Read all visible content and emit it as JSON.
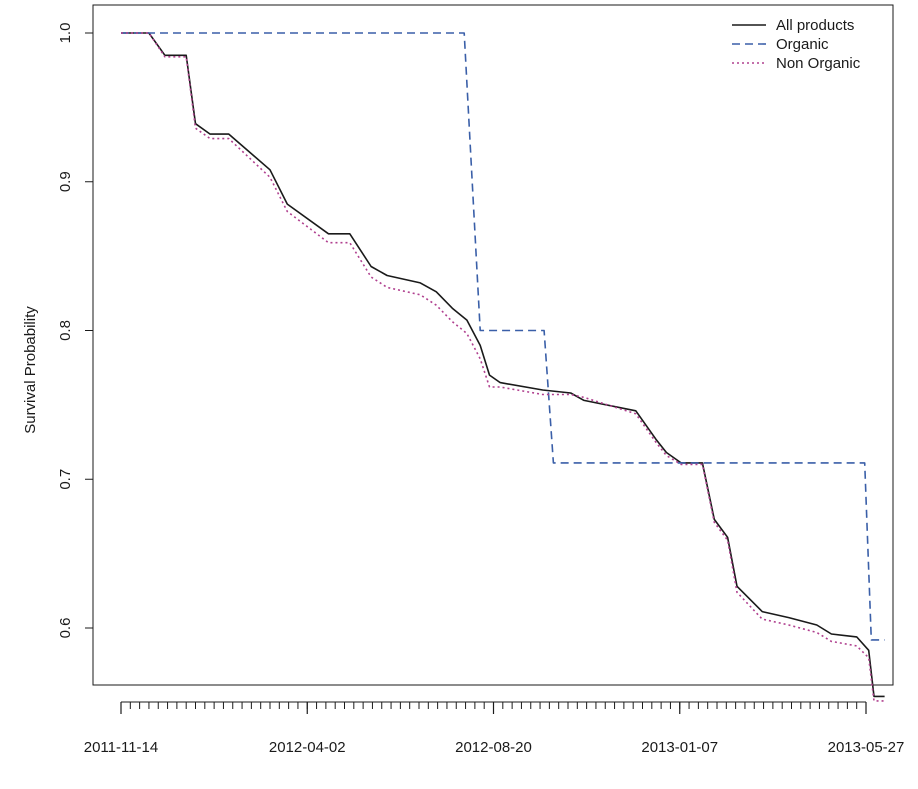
{
  "chart_data": {
    "type": "line",
    "title": "",
    "xlabel": "",
    "ylabel": "Survival Probability",
    "x_type": "date",
    "x_tick_labels": [
      "2011-11-14",
      "2012-04-02",
      "2012-08-20",
      "2013-01-07",
      "2013-05-27"
    ],
    "xlim": [
      "2011-11-14",
      "2013-05-27"
    ],
    "ylim": [
      0.55,
      1.0
    ],
    "y_ticks": [
      0.6,
      0.7,
      0.8,
      0.9,
      1.0
    ],
    "y_tick_labels": [
      "0.6",
      "0.7",
      "0.8",
      "0.9",
      "1.0"
    ],
    "grid": false,
    "legend_position": "top-right",
    "line_style": "step",
    "series": [
      {
        "name": "All products",
        "color": "#1a1a1a",
        "dash": "solid",
        "points": [
          [
            "2011-11-14",
            1.0
          ],
          [
            "2011-12-05",
            1.0
          ],
          [
            "2011-12-17",
            0.985
          ],
          [
            "2012-01-02",
            0.985
          ],
          [
            "2012-01-09",
            0.939
          ],
          [
            "2012-01-20",
            0.932
          ],
          [
            "2012-02-03",
            0.932
          ],
          [
            "2012-03-05",
            0.908
          ],
          [
            "2012-03-18",
            0.885
          ],
          [
            "2012-04-18",
            0.865
          ],
          [
            "2012-05-04",
            0.865
          ],
          [
            "2012-05-20",
            0.843
          ],
          [
            "2012-06-01",
            0.837
          ],
          [
            "2012-06-26",
            0.832
          ],
          [
            "2012-07-08",
            0.826
          ],
          [
            "2012-07-20",
            0.815
          ],
          [
            "2012-07-31",
            0.807
          ],
          [
            "2012-08-10",
            0.79
          ],
          [
            "2012-08-17",
            0.77
          ],
          [
            "2012-08-25",
            0.765
          ],
          [
            "2012-09-26",
            0.76
          ],
          [
            "2012-10-17",
            0.758
          ],
          [
            "2012-10-27",
            0.753
          ],
          [
            "2012-12-05",
            0.746
          ],
          [
            "2012-12-20",
            0.727
          ],
          [
            "2012-12-28",
            0.718
          ],
          [
            "2013-01-08",
            0.711
          ],
          [
            "2013-01-24",
            0.711
          ],
          [
            "2013-02-02",
            0.673
          ],
          [
            "2013-02-12",
            0.661
          ],
          [
            "2013-02-19",
            0.628
          ],
          [
            "2013-03-10",
            0.611
          ],
          [
            "2013-03-30",
            0.607
          ],
          [
            "2013-04-20",
            0.602
          ],
          [
            "2013-05-01",
            0.596
          ],
          [
            "2013-05-20",
            0.594
          ],
          [
            "2013-05-29",
            0.585
          ],
          [
            "2013-06-02",
            0.554
          ],
          [
            "2013-06-10",
            0.554
          ]
        ]
      },
      {
        "name": "Organic",
        "color": "#3a5fa8",
        "dash": "dashed",
        "points": [
          [
            "2011-11-14",
            1.0
          ],
          [
            "2012-07-29",
            1.0
          ],
          [
            "2012-08-10",
            0.8
          ],
          [
            "2012-09-27",
            0.8
          ],
          [
            "2012-10-04",
            0.711
          ],
          [
            "2013-05-26",
            0.711
          ],
          [
            "2013-05-31",
            0.592
          ],
          [
            "2013-06-10",
            0.592
          ]
        ]
      },
      {
        "name": "Non Organic",
        "color": "#b0408f",
        "dash": "dotted",
        "points": [
          [
            "2011-11-14",
            1.0
          ],
          [
            "2011-12-05",
            1.0
          ],
          [
            "2011-12-17",
            0.984
          ],
          [
            "2012-01-02",
            0.984
          ],
          [
            "2012-01-09",
            0.936
          ],
          [
            "2012-01-20",
            0.929
          ],
          [
            "2012-02-03",
            0.929
          ],
          [
            "2012-03-05",
            0.903
          ],
          [
            "2012-03-18",
            0.88
          ],
          [
            "2012-04-18",
            0.859
          ],
          [
            "2012-05-04",
            0.859
          ],
          [
            "2012-05-20",
            0.836
          ],
          [
            "2012-06-01",
            0.829
          ],
          [
            "2012-06-26",
            0.824
          ],
          [
            "2012-07-08",
            0.817
          ],
          [
            "2012-07-20",
            0.806
          ],
          [
            "2012-07-31",
            0.798
          ],
          [
            "2012-08-10",
            0.781
          ],
          [
            "2012-08-17",
            0.762
          ],
          [
            "2012-08-25",
            0.762
          ],
          [
            "2012-09-26",
            0.757
          ],
          [
            "2012-10-17",
            0.757
          ],
          [
            "2012-10-27",
            0.755
          ],
          [
            "2012-12-05",
            0.744
          ],
          [
            "2012-12-20",
            0.725
          ],
          [
            "2012-12-28",
            0.716
          ],
          [
            "2013-01-08",
            0.71
          ],
          [
            "2013-01-24",
            0.71
          ],
          [
            "2013-02-02",
            0.671
          ],
          [
            "2013-02-12",
            0.659
          ],
          [
            "2013-02-19",
            0.624
          ],
          [
            "2013-03-10",
            0.606
          ],
          [
            "2013-03-30",
            0.602
          ],
          [
            "2013-04-20",
            0.597
          ],
          [
            "2013-05-01",
            0.591
          ],
          [
            "2013-05-20",
            0.588
          ],
          [
            "2013-05-29",
            0.58
          ],
          [
            "2013-06-02",
            0.551
          ],
          [
            "2013-06-10",
            0.551
          ]
        ]
      }
    ]
  }
}
